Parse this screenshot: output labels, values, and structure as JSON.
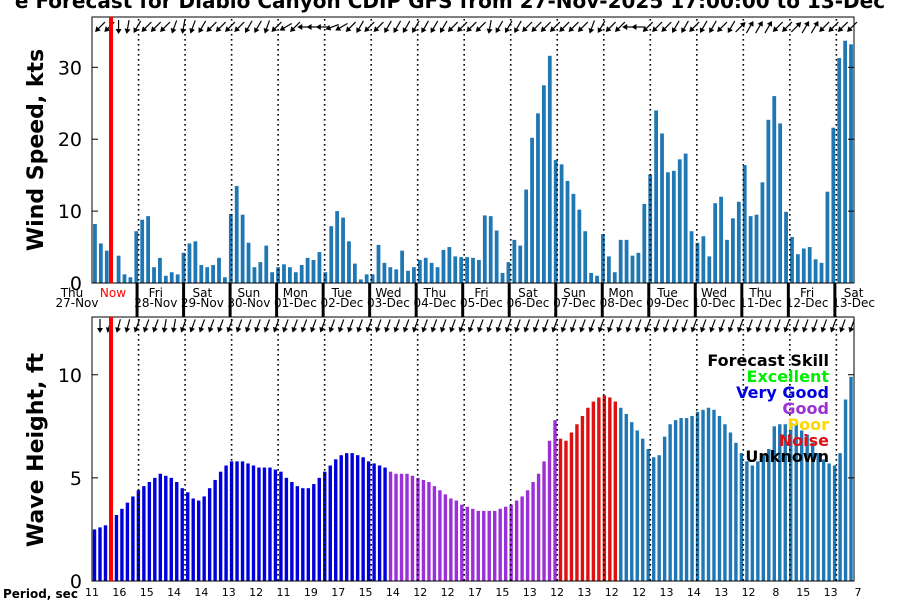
{
  "chart_data": {
    "title": "e Forecast for Diablo Canyon CDIP GFS from 27-Nov-2025 17:00:00 to 13-Dec",
    "now_label": "Now",
    "day_labels": [
      {
        "day": "Thu",
        "date": "27-Nov"
      },
      {
        "day": "Fri",
        "date": "28-Nov"
      },
      {
        "day": "Sat",
        "date": "29-Nov"
      },
      {
        "day": "Sun",
        "date": "30-Nov"
      },
      {
        "day": "Mon",
        "date": "01-Dec"
      },
      {
        "day": "Tue",
        "date": "02-Dec"
      },
      {
        "day": "Wed",
        "date": "03-Dec"
      },
      {
        "day": "Thu",
        "date": "04-Dec"
      },
      {
        "day": "Fri",
        "date": "05-Dec"
      },
      {
        "day": "Sat",
        "date": "06-Dec"
      },
      {
        "day": "Sun",
        "date": "07-Dec"
      },
      {
        "day": "Mon",
        "date": "08-Dec"
      },
      {
        "day": "Tue",
        "date": "09-Dec"
      },
      {
        "day": "Wed",
        "date": "10-Dec"
      },
      {
        "day": "Thu",
        "date": "11-Dec"
      },
      {
        "day": "Fri",
        "date": "12-Dec"
      },
      {
        "day": "Sat",
        "date": "13-Dec"
      }
    ],
    "wind": {
      "type": "bar",
      "ylabel": "Wind Speed, kts",
      "ylim": [
        0,
        37
      ],
      "yticks": [
        0,
        10,
        20,
        30
      ],
      "color": "#1f77b4",
      "values": [
        8.2,
        5.5,
        4.5,
        null,
        3.8,
        1.2,
        0.8,
        7.2,
        8.8,
        9.3,
        2.2,
        3.5,
        1.0,
        1.5,
        1.2,
        4.2,
        5.5,
        5.8,
        2.5,
        2.2,
        2.5,
        3.5,
        0.8,
        9.6,
        13.5,
        9.5,
        5.6,
        2.2,
        2.9,
        5.2,
        1.5,
        2.2,
        2.6,
        2.2,
        1.5,
        2.5,
        3.5,
        3.2,
        4.3,
        1.5,
        7.9,
        10.0,
        9.1,
        5.8,
        2.7,
        0.5,
        1.2,
        1.2,
        5.3,
        2.8,
        2.2,
        1.9,
        4.5,
        1.7,
        2.2,
        3.2,
        3.5,
        2.8,
        2.2,
        4.6,
        5.0,
        3.7,
        3.6,
        3.6,
        3.5,
        3.2,
        9.4,
        9.3,
        7.3,
        1.4,
        2.9,
        6.0,
        5.2,
        13.0,
        20.2,
        23.6,
        27.5,
        31.6,
        17.1,
        16.5,
        14.2,
        12.4,
        10.2,
        7.2,
        1.4,
        1.0,
        6.8,
        3.7,
        1.5,
        6.0,
        6.0,
        3.8,
        4.2,
        11.0,
        15.1,
        24.0,
        20.8,
        15.4,
        15.6,
        17.2,
        18.0,
        7.2,
        5.6,
        6.5,
        3.7,
        11.1,
        12.0,
        6.0,
        9.0,
        11.3,
        16.4,
        9.3,
        9.5,
        14.0,
        22.7,
        26.0,
        22.2,
        9.9,
        6.4,
        4.0,
        4.8,
        5.0,
        3.3,
        2.8,
        12.7,
        21.6,
        31.3,
        33.7,
        33.2
      ]
    },
    "wave": {
      "type": "bar",
      "ylabel": "Wave Height, ft",
      "xlabel": "Period, sec",
      "ylim": [
        0,
        12.8
      ],
      "yticks": [
        0,
        5,
        10
      ],
      "values": [
        2.5,
        2.6,
        2.7,
        2.8,
        3.2,
        3.5,
        3.8,
        4.1,
        4.4,
        4.6,
        4.8,
        5.0,
        5.2,
        5.1,
        5.0,
        4.8,
        4.5,
        4.3,
        4.0,
        3.9,
        4.1,
        4.5,
        4.9,
        5.3,
        5.6,
        5.8,
        5.8,
        5.8,
        5.7,
        5.6,
        5.5,
        5.5,
        5.5,
        5.4,
        5.3,
        5.0,
        4.8,
        4.6,
        4.5,
        4.5,
        4.7,
        5.0,
        5.3,
        5.6,
        5.9,
        6.1,
        6.2,
        6.2,
        6.1,
        6.0,
        5.8,
        5.7,
        5.6,
        5.5,
        5.3,
        5.2,
        5.2,
        5.2,
        5.1,
        5.0,
        4.9,
        4.8,
        4.6,
        4.4,
        4.2,
        4.0,
        3.9,
        3.7,
        3.6,
        3.5,
        3.4,
        3.4,
        3.4,
        3.4,
        3.5,
        3.6,
        3.7,
        3.9,
        4.1,
        4.4,
        4.8,
        5.2,
        5.8,
        6.8,
        7.8,
        6.9,
        6.8,
        7.2,
        7.6,
        8.0,
        8.4,
        8.7,
        8.9,
        9.0,
        8.9,
        8.7,
        8.4,
        8.1,
        7.7,
        7.3,
        6.9,
        6.4,
        6.0,
        6.1,
        7.0,
        7.6,
        7.8,
        7.9,
        7.9,
        8.0,
        8.2,
        8.3,
        8.4,
        8.3,
        8.0,
        7.6,
        7.2,
        6.7,
        6.2,
        5.8,
        5.6,
        5.8,
        6.1,
        6.4,
        7.5,
        7.6,
        7.6,
        7.7,
        7.6,
        7.3,
        7.1,
        6.7,
        6.2,
        5.9,
        5.7,
        5.6,
        6.2,
        8.8,
        9.9
      ],
      "skill_bands": [
        {
          "label": "Excellent",
          "color": "#00ee00",
          "start": null,
          "end": null
        },
        {
          "label": "Very Good",
          "color": "#0000dd",
          "start": 0,
          "end": 53
        },
        {
          "label": "Good",
          "color": "#9b30d9",
          "start": 54,
          "end": 84
        },
        {
          "label": "Poor",
          "color": "#ffd700",
          "start": null,
          "end": null
        },
        {
          "label": "Noise",
          "color": "#dd1111",
          "start": 85,
          "end": 95
        },
        {
          "label": "Unknown",
          "color": "#000000",
          "start": null,
          "end": null
        }
      ],
      "default_color": "#1f77b4",
      "legend_title": "Forecast Skill",
      "period_ticks": [
        "11",
        "16",
        "15",
        "14",
        "14",
        "13",
        "12",
        "11",
        "19",
        "17",
        "15",
        "14",
        "12",
        "12",
        "17",
        "15",
        "13",
        "12",
        "13",
        "12",
        "12",
        "13",
        "14",
        "13",
        "12",
        "8",
        "15",
        "13",
        "7"
      ]
    },
    "wind_arrows_deg": [
      135,
      135,
      90,
      100,
      120,
      135,
      135,
      135,
      110,
      100,
      110,
      120,
      135,
      135,
      135,
      135,
      120,
      120,
      110,
      135,
      150,
      135,
      180,
      180,
      180,
      160,
      150,
      135,
      120,
      135,
      135,
      120,
      120,
      120,
      120,
      120,
      120,
      120,
      135,
      135,
      135,
      135,
      100,
      120,
      120,
      120,
      135,
      135,
      135,
      135,
      135,
      135,
      135,
      110,
      120,
      135,
      135,
      180,
      180,
      135,
      135,
      135,
      120,
      120,
      135,
      120,
      120,
      135,
      120,
      315,
      300,
      300,
      300,
      135,
      135,
      315,
      300,
      300,
      135,
      135,
      135,
      135
    ],
    "wave_arrows_deg": [
      90,
      105,
      105,
      105,
      110,
      110,
      110,
      100,
      100,
      110,
      110,
      110,
      110,
      110,
      110,
      110,
      110,
      110,
      110,
      110,
      110,
      110,
      110,
      110,
      110,
      110,
      110,
      110,
      110,
      110,
      110,
      110,
      110,
      110,
      110,
      110,
      110,
      110,
      110,
      110,
      110,
      110,
      110,
      110,
      110,
      110,
      110,
      110,
      110,
      110,
      110,
      110,
      110,
      110,
      110,
      110,
      110,
      110,
      110,
      110,
      110,
      110,
      110,
      110,
      110,
      110,
      110,
      110,
      110,
      110,
      110,
      110,
      110,
      110,
      110,
      110,
      110,
      110,
      110,
      110,
      110,
      110
    ]
  }
}
